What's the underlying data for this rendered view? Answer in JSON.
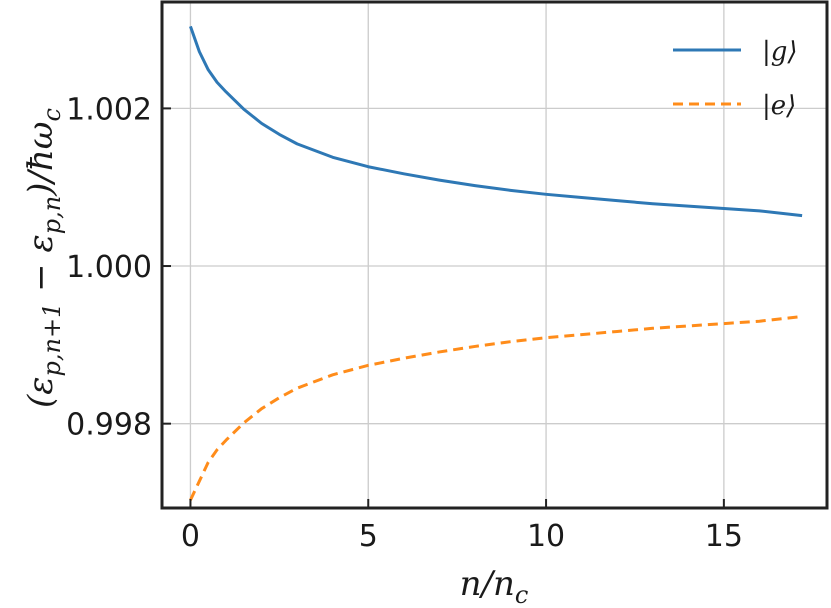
{
  "chart_data": {
    "type": "line",
    "title": "",
    "xlabel": "n/n_c",
    "ylabel": "(ε_{p,n+1} − ε_{p,n})/ħω_c",
    "xlabel_display": "n/nc",
    "ylabel_display": "(εp,n+1 − εp,n)/ħωc",
    "xlim": [
      -0.8,
      17.9
    ],
    "ylim": [
      0.99693,
      1.00335
    ],
    "xticks": [
      0,
      5,
      10,
      15
    ],
    "xtick_labels": [
      "0",
      "5",
      "10",
      "15"
    ],
    "yticks": [
      0.998,
      1.0,
      1.002
    ],
    "ytick_labels": [
      "0.998",
      "1.000",
      "1.002"
    ],
    "grid": true,
    "legend_position": "top-right",
    "series": [
      {
        "name": "|g⟩",
        "color": "#2e78b5",
        "style": "solid",
        "x": [
          0,
          0.25,
          0.5,
          0.75,
          1,
          1.5,
          2,
          2.5,
          3,
          4,
          5,
          6,
          7,
          8,
          9,
          10,
          11,
          12,
          13,
          14,
          15,
          16,
          17.2
        ],
        "y": [
          1.00304,
          1.00272,
          1.00249,
          1.00233,
          1.00221,
          1.00199,
          1.00181,
          1.00167,
          1.00155,
          1.00138,
          1.00126,
          1.00117,
          1.00109,
          1.00102,
          1.00096,
          1.00091,
          1.00087,
          1.00083,
          1.00079,
          1.00076,
          1.00073,
          1.0007,
          1.00064
        ]
      },
      {
        "name": "|e⟩",
        "color": "#ff8c1a",
        "style": "dashed",
        "x": [
          0,
          0.25,
          0.5,
          0.75,
          1,
          1.5,
          2,
          2.5,
          3,
          4,
          5,
          6,
          7,
          8,
          9,
          10,
          11,
          12,
          13,
          14,
          15,
          16,
          17.2
        ],
        "y": [
          0.99703,
          0.99727,
          0.99751,
          0.99767,
          0.99779,
          0.99801,
          0.99819,
          0.99833,
          0.99845,
          0.99862,
          0.99874,
          0.99883,
          0.99891,
          0.99898,
          0.99904,
          0.99909,
          0.99913,
          0.99917,
          0.99921,
          0.99924,
          0.99927,
          0.9993,
          0.99936
        ]
      }
    ]
  }
}
